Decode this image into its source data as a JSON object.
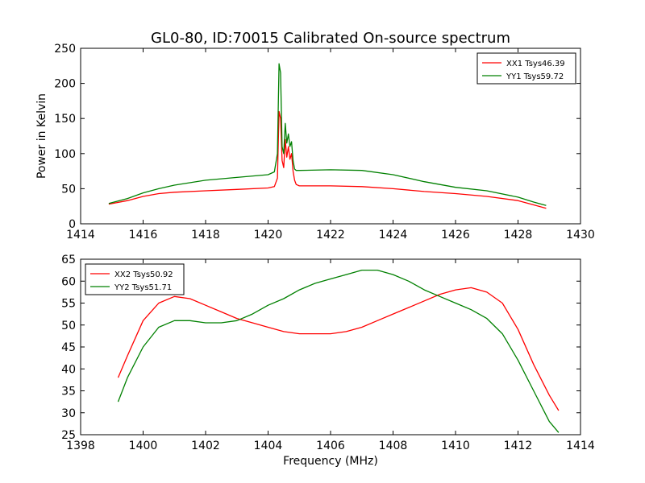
{
  "figure": {
    "title": "GL0-80, ID:70015 Calibrated On-source spectrum",
    "xlabel": "Frequency (MHz)",
    "colors": {
      "xx": "#ff0000",
      "yy": "#008000",
      "axes": "#000000",
      "background": "#ffffff"
    }
  },
  "chart_data": [
    {
      "type": "line",
      "title": "GL0-80, ID:70015 Calibrated On-source spectrum",
      "xlabel": "",
      "ylabel": "Power in Kelvin",
      "xlim": [
        1414,
        1430
      ],
      "ylim": [
        0,
        250
      ],
      "xticks": [
        "1414",
        "1416",
        "1418",
        "1420",
        "1422",
        "1424",
        "1426",
        "1428",
        "1430"
      ],
      "yticks": [
        "0",
        "50",
        "100",
        "150",
        "200",
        "250"
      ],
      "grid": false,
      "legend": "top-right",
      "series": [
        {
          "name": "XX1 Tsys46.39",
          "color": "#ff0000",
          "x": [
            1414.9,
            1415.5,
            1416.0,
            1416.5,
            1417.0,
            1418.0,
            1419.0,
            1420.0,
            1420.2,
            1420.3,
            1420.35,
            1420.4,
            1420.45,
            1420.5,
            1420.55,
            1420.6,
            1420.65,
            1420.7,
            1420.75,
            1420.8,
            1420.85,
            1420.9,
            1421.0,
            1422.0,
            1423.0,
            1424.0,
            1425.0,
            1426.0,
            1427.0,
            1428.0,
            1428.5,
            1428.9
          ],
          "y": [
            28,
            33,
            39,
            43,
            45,
            47,
            49,
            51,
            53,
            65,
            160,
            150,
            90,
            80,
            120,
            95,
            110,
            92,
            100,
            75,
            62,
            56,
            54,
            54,
            53,
            50,
            46,
            43,
            39,
            33,
            27,
            22
          ]
        },
        {
          "name": "YY1 Tsys59.72",
          "color": "#008000",
          "x": [
            1414.9,
            1415.5,
            1416.0,
            1416.5,
            1417.0,
            1418.0,
            1419.0,
            1420.0,
            1420.2,
            1420.3,
            1420.35,
            1420.4,
            1420.45,
            1420.5,
            1420.55,
            1420.6,
            1420.65,
            1420.7,
            1420.75,
            1420.8,
            1420.85,
            1420.9,
            1421.0,
            1422.0,
            1423.0,
            1424.0,
            1425.0,
            1426.0,
            1427.0,
            1428.0,
            1428.5,
            1428.9
          ],
          "y": [
            29,
            36,
            44,
            50,
            55,
            62,
            66,
            70,
            74,
            100,
            228,
            215,
            110,
            100,
            143,
            115,
            128,
            110,
            117,
            90,
            78,
            76,
            76,
            77,
            76,
            70,
            60,
            52,
            47,
            38,
            31,
            26
          ]
        }
      ]
    },
    {
      "type": "line",
      "title": "",
      "xlabel": "Frequency (MHz)",
      "ylabel": "",
      "xlim": [
        1398,
        1414
      ],
      "ylim": [
        25,
        65
      ],
      "xticks": [
        "1398",
        "1400",
        "1402",
        "1404",
        "1406",
        "1408",
        "1410",
        "1412",
        "1414"
      ],
      "yticks": [
        "25",
        "30",
        "35",
        "40",
        "45",
        "50",
        "55",
        "60",
        "65"
      ],
      "grid": false,
      "legend": "top-left",
      "series": [
        {
          "name": "XX2 Tsys50.92",
          "color": "#ff0000",
          "x": [
            1399.2,
            1399.5,
            1400.0,
            1400.5,
            1401.0,
            1401.5,
            1402.0,
            1402.5,
            1403.0,
            1403.5,
            1404.0,
            1404.5,
            1405.0,
            1405.5,
            1406.0,
            1406.5,
            1407.0,
            1407.5,
            1408.0,
            1408.5,
            1409.0,
            1409.5,
            1410.0,
            1410.5,
            1411.0,
            1411.5,
            1412.0,
            1412.5,
            1413.0,
            1413.3
          ],
          "y": [
            38,
            43,
            51,
            55,
            56.5,
            56,
            54.5,
            53,
            51.5,
            50.5,
            49.5,
            48.5,
            48,
            48,
            48,
            48.5,
            49.5,
            51,
            52.5,
            54,
            55.5,
            57,
            58,
            58.5,
            57.5,
            55,
            49,
            41,
            34,
            30.5
          ]
        },
        {
          "name": "YY2 Tsys51.71",
          "color": "#008000",
          "x": [
            1399.2,
            1399.5,
            1400.0,
            1400.5,
            1401.0,
            1401.5,
            1402.0,
            1402.5,
            1403.0,
            1403.5,
            1404.0,
            1404.5,
            1405.0,
            1405.5,
            1406.0,
            1406.5,
            1407.0,
            1407.5,
            1408.0,
            1408.5,
            1409.0,
            1409.5,
            1410.0,
            1410.5,
            1411.0,
            1411.5,
            1412.0,
            1412.5,
            1413.0,
            1413.3
          ],
          "y": [
            32.5,
            38,
            45,
            49.5,
            51,
            51,
            50.5,
            50.5,
            51,
            52.5,
            54.5,
            56,
            58,
            59.5,
            60.5,
            61.5,
            62.5,
            62.5,
            61.5,
            60,
            58,
            56.5,
            55,
            53.5,
            51.5,
            48,
            42,
            35,
            28,
            25.5
          ]
        }
      ]
    }
  ]
}
